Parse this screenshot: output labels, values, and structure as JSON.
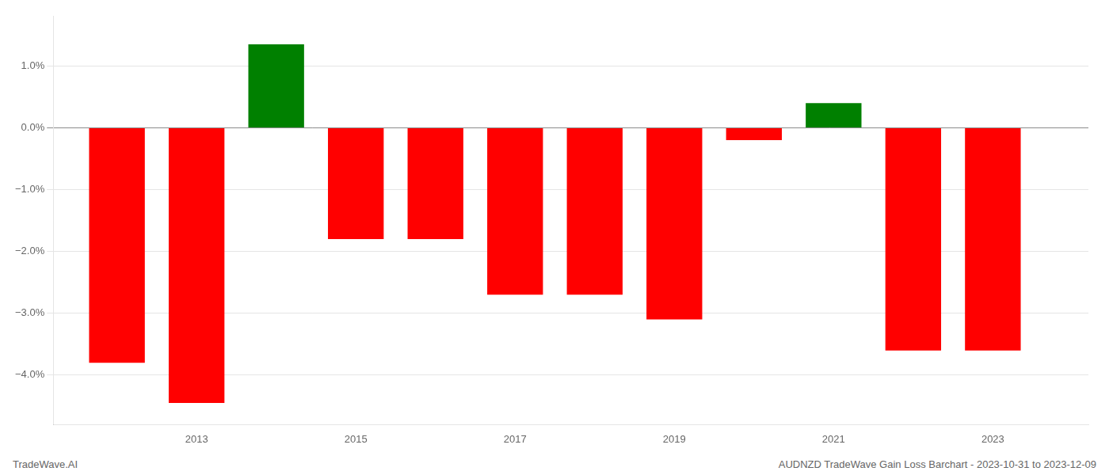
{
  "chart_data": {
    "type": "bar",
    "x": [
      2012,
      2013,
      2014,
      2015,
      2016,
      2017,
      2018,
      2019,
      2020,
      2021,
      2022,
      2023
    ],
    "values": [
      -0.038,
      -0.0445,
      0.0135,
      -0.018,
      -0.018,
      -0.027,
      -0.027,
      -0.031,
      -0.002,
      0.004,
      -0.036,
      -0.036
    ],
    "colors": [
      "#ff0000",
      "#ff0000",
      "#008000",
      "#ff0000",
      "#ff0000",
      "#ff0000",
      "#ff0000",
      "#ff0000",
      "#ff0000",
      "#008000",
      "#ff0000",
      "#ff0000"
    ],
    "xlim": [
      2011.2,
      2024.2
    ],
    "xticks": [
      2013,
      2015,
      2017,
      2019,
      2021,
      2023
    ],
    "ylim": [
      -0.048,
      0.018
    ],
    "yticks": [
      {
        "value": -0.04,
        "label": "−4.0%"
      },
      {
        "value": -0.03,
        "label": "−3.0%"
      },
      {
        "value": -0.02,
        "label": "−2.0%"
      },
      {
        "value": -0.01,
        "label": "−1.0%"
      },
      {
        "value": 0.0,
        "label": "0.0%"
      },
      {
        "value": 0.01,
        "label": "1.0%"
      }
    ],
    "grid": true,
    "annotations": [
      "TradeWave.AI",
      "AUDNZD TradeWave Gain Loss Barchart - 2023-10-31 to 2023-12-09"
    ]
  }
}
